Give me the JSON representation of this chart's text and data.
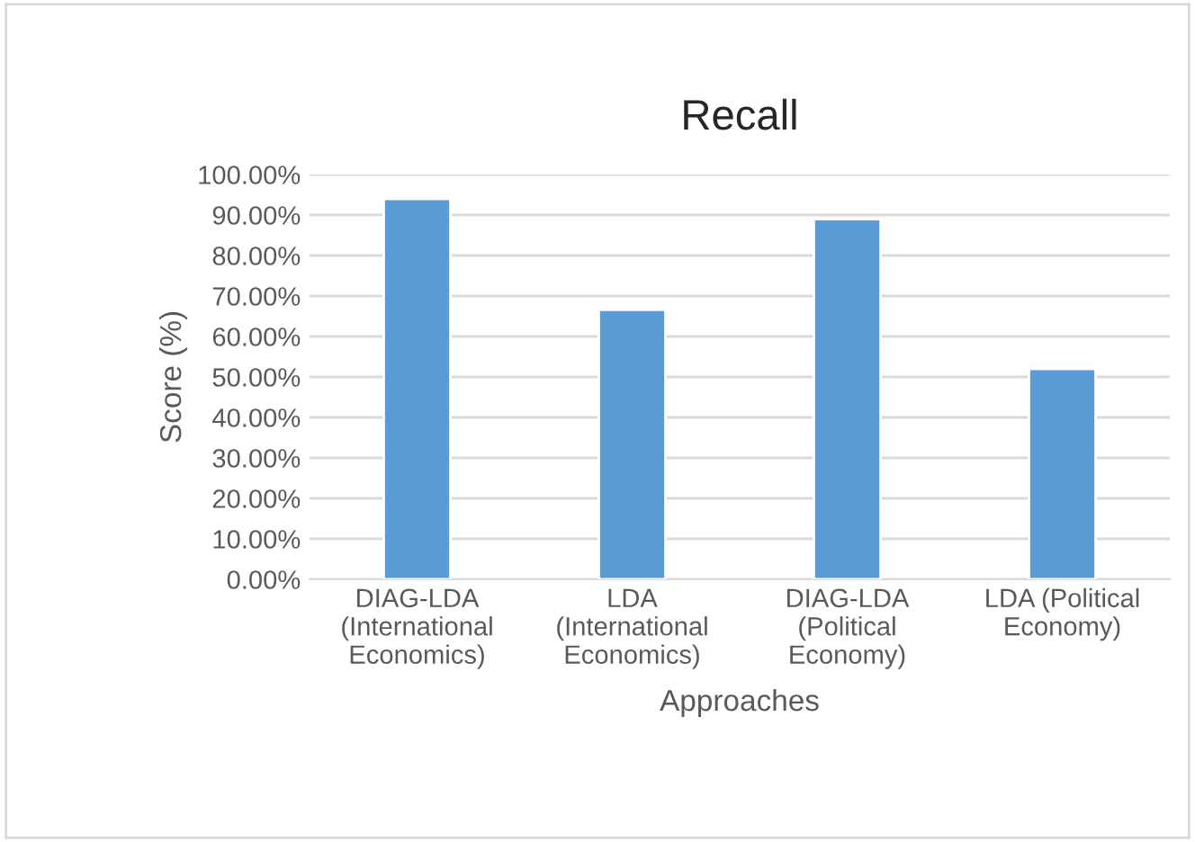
{
  "chart_data": {
    "type": "bar",
    "title": "Recall",
    "xlabel": "Approaches",
    "ylabel": "Score (%)",
    "categories": [
      "DIAG-LDA\n(International\nEconomics)",
      "LDA\n(International\nEconomics)",
      "DIAG-LDA\n(Political\nEconomy)",
      "LDA (Political\nEconomy)"
    ],
    "values": [
      94,
      66.6,
      89,
      52
    ],
    "color": "#5b9bd5",
    "ylim": [
      0,
      100
    ],
    "yticks": [
      {
        "value": 0,
        "label": "0.00%"
      },
      {
        "value": 10,
        "label": "10.00%"
      },
      {
        "value": 20,
        "label": "20.00%"
      },
      {
        "value": 30,
        "label": "30.00%"
      },
      {
        "value": 40,
        "label": "40.00%"
      },
      {
        "value": 50,
        "label": "50.00%"
      },
      {
        "value": 60,
        "label": "60.00%"
      },
      {
        "value": 70,
        "label": "70.00%"
      },
      {
        "value": 80,
        "label": "80.00%"
      },
      {
        "value": 90,
        "label": "90.00%"
      },
      {
        "value": 100,
        "label": "100.00%"
      }
    ],
    "grid": "y"
  }
}
